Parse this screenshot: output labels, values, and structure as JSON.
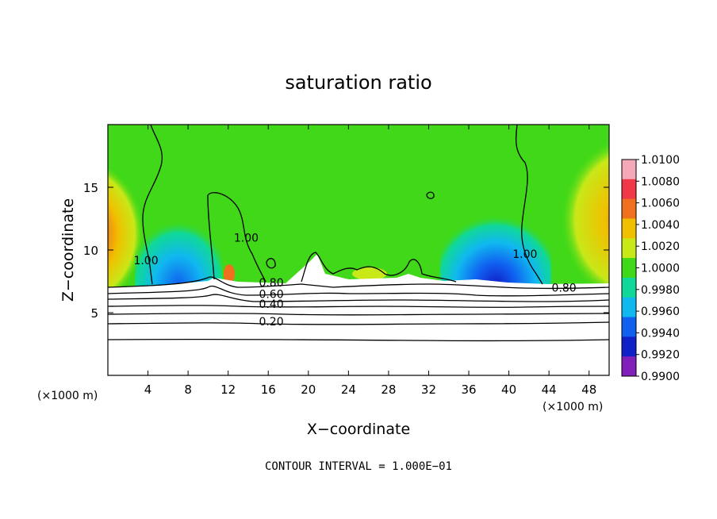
{
  "chart_data": {
    "type": "heatmap",
    "title": "saturation ratio",
    "xlabel": "X−coordinate",
    "ylabel": "Z−coordinate",
    "x_unit_left": "(×1000 m)",
    "x_unit_right": "(×1000 m)",
    "xlim": [
      0,
      50
    ],
    "ylim": [
      0,
      20
    ],
    "x_ticks": [
      4,
      8,
      12,
      16,
      20,
      24,
      28,
      32,
      36,
      40,
      44,
      48
    ],
    "y_ticks": [
      5,
      10,
      15
    ],
    "footer": "CONTOUR INTERVAL = 1.000E−01",
    "colorbar": {
      "levels": [
        "1.0100",
        "1.0080",
        "1.0060",
        "1.0040",
        "1.0020",
        "1.0000",
        "0.9980",
        "0.9960",
        "0.9940",
        "0.9920",
        "0.9900"
      ],
      "colors": [
        "#f4a8b8",
        "#f03848",
        "#f07020",
        "#f0c000",
        "#c8e818",
        "#40d818",
        "#10d898",
        "#10b8f0",
        "#1060f0",
        "#1020c8",
        "#8020b8"
      ]
    },
    "contour_labels": [
      {
        "text": "1.00",
        "x": 3.8,
        "y": 9.0
      },
      {
        "text": "1.00",
        "x": 13.8,
        "y": 10.8
      },
      {
        "text": "1.00",
        "x": 41.6,
        "y": 9.5
      },
      {
        "text": "0.80",
        "x": 16.3,
        "y": 7.2
      },
      {
        "text": "0.60",
        "x": 16.3,
        "y": 6.3
      },
      {
        "text": "0.40",
        "x": 16.3,
        "y": 5.5
      },
      {
        "text": "0.20",
        "x": 16.3,
        "y": 4.1
      },
      {
        "text": "0.80",
        "x": 45.5,
        "y": 6.8
      }
    ]
  }
}
